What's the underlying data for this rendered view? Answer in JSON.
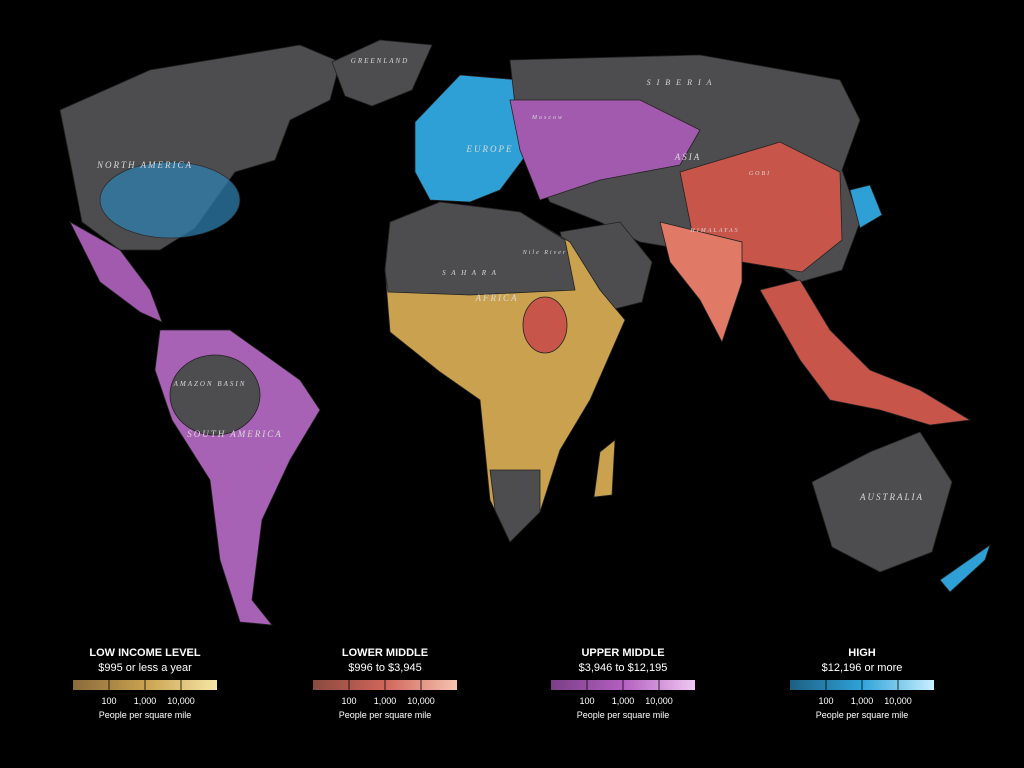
{
  "map": {
    "labels": [
      {
        "text": "GREENLAND"
      },
      {
        "text": "S I B E R I A"
      },
      {
        "text": "NORTH AMERICA"
      },
      {
        "text": "EUROPE"
      },
      {
        "text": "Moscow"
      },
      {
        "text": "ASIA"
      },
      {
        "text": "GOBI"
      },
      {
        "text": "HIMALAYAS"
      },
      {
        "text": "S A H A R A"
      },
      {
        "text": "AFRICA"
      },
      {
        "text": "Nile River"
      },
      {
        "text": "AMAZON BASIN"
      },
      {
        "text": "SOUTH AMERICA"
      },
      {
        "text": "AUSTRALIA"
      }
    ]
  },
  "legend": [
    {
      "title": "LOW INCOME LEVEL",
      "range": "$995 or less a year",
      "ticks": [
        "100",
        "1,000",
        "10,000"
      ],
      "unit": "People per square mile",
      "colors": [
        "#8a6a3c",
        "#c9a14f",
        "#f6e7a6"
      ]
    },
    {
      "title": "LOWER MIDDLE",
      "range": "$996 to $3,945",
      "ticks": [
        "100",
        "1,000",
        "10,000"
      ],
      "unit": "People per square mile",
      "colors": [
        "#8a4a3f",
        "#d0655a",
        "#f6c3b0"
      ]
    },
    {
      "title": "UPPER MIDDLE",
      "range": "$3,946 to $12,195",
      "ticks": [
        "100",
        "1,000",
        "10,000"
      ],
      "unit": "People per square mile",
      "colors": [
        "#7a3f86",
        "#b35fc0",
        "#f0c8f2"
      ]
    },
    {
      "title": "HIGH",
      "range": "$12,196 or more",
      "ticks": [
        "100",
        "1,000",
        "10,000"
      ],
      "unit": "People per square mile",
      "colors": [
        "#1d5f83",
        "#2fa3d8",
        "#c9f0ff"
      ]
    }
  ]
}
